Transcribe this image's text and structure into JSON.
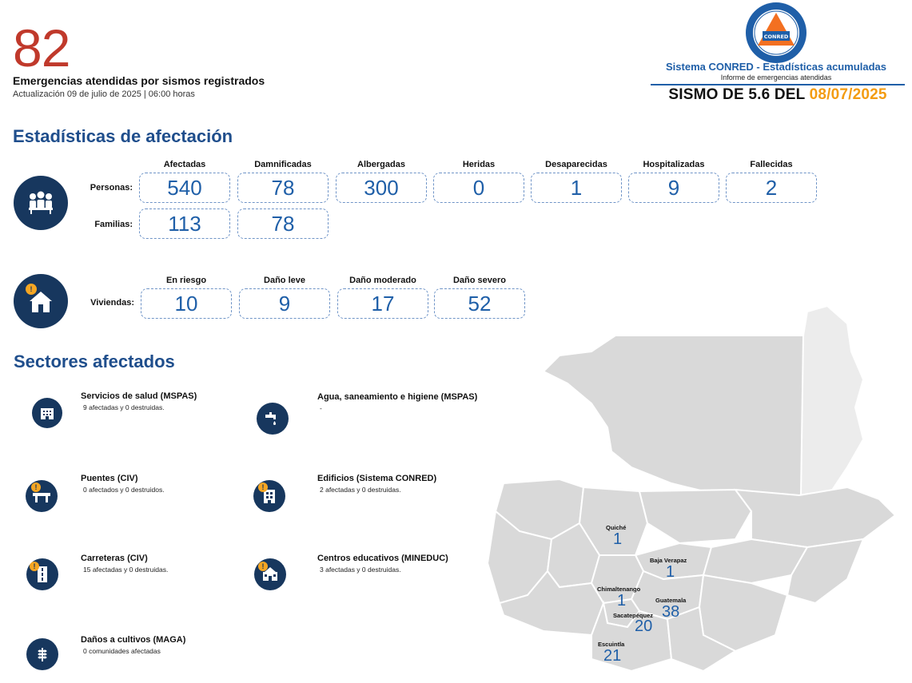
{
  "header": {
    "total_emergencies": "82",
    "subtitle": "Emergencias atendidas por sismos registrados",
    "update": "Actualización 09 de julio de 2025 | 06:00 horas",
    "logo_text": "CONRED",
    "system_title": "Sistema CONRED - Estadísticas acumuladas",
    "system_subtitle": "Informe de emergencias atendidas",
    "sismo_prefix": "SISMO DE 5.6 DEL",
    "sismo_date": "08/07/2025"
  },
  "affectation": {
    "title": "Estadísticas de afectación",
    "people_label": "Personas:",
    "families_label": "Familias:",
    "people_columns": [
      "Afectadas",
      "Damnificadas",
      "Albergadas",
      "Heridas",
      "Desaparecidas",
      "Hospitalizadas",
      "Fallecidas"
    ],
    "people_values": [
      "540",
      "78",
      "300",
      "0",
      "1",
      "9",
      "2"
    ],
    "families_values": [
      "113",
      "78"
    ],
    "housing_label": "Viviendas:",
    "housing_columns": [
      "En riesgo",
      "Daño leve",
      "Daño moderado",
      "Daño severo"
    ],
    "housing_values": [
      "10",
      "9",
      "17",
      "52"
    ]
  },
  "sectors": {
    "title": "Sectores afectados",
    "items": [
      {
        "name": "Servicios de salud (MSPAS)",
        "desc": "9 afectadas y 0 destruidas.",
        "icon": "hospital-icon"
      },
      {
        "name": "Agua, saneamiento e higiene (MSPAS)",
        "desc": "-",
        "icon": "water-tap-icon"
      },
      {
        "name": "Puentes (CIV)",
        "desc": "0 afectados y 0 destruidos.",
        "icon": "bridge-icon"
      },
      {
        "name": "Edificios (Sistema CONRED)",
        "desc": "2 afectadas y 0 destruidas.",
        "icon": "building-icon"
      },
      {
        "name": "Carreteras (CIV)",
        "desc": "15 afectadas y 0 destruidas.",
        "icon": "road-icon"
      },
      {
        "name": "Centros educativos (MINEDUC)",
        "desc": "3 afectadas y 0 destruidas.",
        "icon": "school-icon"
      },
      {
        "name": "Daños a cultivos (MAGA)",
        "desc": "0 comunidades afectadas",
        "icon": "crops-icon"
      }
    ]
  },
  "map": {
    "departments": [
      {
        "name": "Quiché",
        "value": "1"
      },
      {
        "name": "Baja Verapaz",
        "value": "1"
      },
      {
        "name": "Chimaltenango",
        "value": "1"
      },
      {
        "name": "Guatemala",
        "value": "38"
      },
      {
        "name": "Sacatepéquez",
        "value": "20"
      },
      {
        "name": "Escuintla",
        "value": "21"
      }
    ]
  },
  "colors": {
    "accent_red": "#c0392b",
    "navy": "#17375e",
    "blue": "#1f5fa8",
    "orange": "#f39c12",
    "map_gray": "#d9d9d9"
  }
}
